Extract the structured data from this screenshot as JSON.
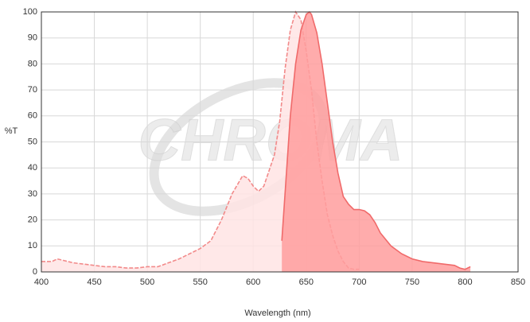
{
  "chart_data": {
    "type": "area",
    "watermark": "CHROMA",
    "xlabel": "Wavelength (nm)",
    "ylabel": "%T",
    "xlim": [
      400,
      850
    ],
    "xticks": [
      400,
      450,
      500,
      550,
      600,
      650,
      700,
      750,
      800,
      850
    ],
    "ylim": [
      0,
      100
    ],
    "yticks": [
      0,
      10,
      20,
      30,
      40,
      50,
      60,
      70,
      80,
      90,
      100
    ],
    "grid": true,
    "series": [
      {
        "color": "#f28a8a",
        "fill": "#ffe4e4",
        "dashed": true,
        "x": [
          400,
          410,
          415,
          420,
          430,
          440,
          450,
          460,
          470,
          480,
          490,
          500,
          510,
          520,
          530,
          540,
          550,
          560,
          570,
          580,
          590,
          595,
          600,
          605,
          610,
          620,
          625,
          630,
          635,
          640,
          645,
          650,
          655,
          660,
          665,
          670,
          675,
          680,
          685,
          690,
          695,
          700
        ],
        "values": [
          4,
          4,
          5,
          4.5,
          3.5,
          3,
          2.5,
          2,
          2,
          1.5,
          1.5,
          2,
          2,
          3.5,
          5,
          7,
          9,
          12,
          20,
          30,
          37,
          36,
          33,
          31,
          33,
          45,
          58,
          78,
          93,
          100,
          97,
          85,
          70,
          50,
          35,
          22,
          14,
          8,
          4,
          1.5,
          1,
          1
        ]
      },
      {
        "color": "#f06a6a",
        "fill": "#ff9d9d",
        "dashed": false,
        "x": [
          627,
          630,
          635,
          640,
          645,
          650,
          653,
          655,
          660,
          665,
          670,
          675,
          680,
          685,
          690,
          695,
          700,
          705,
          710,
          715,
          720,
          730,
          740,
          750,
          760,
          770,
          780,
          790,
          795,
          800,
          805
        ],
        "values": [
          12,
          30,
          60,
          80,
          93,
          99,
          100,
          99,
          92,
          80,
          65,
          50,
          38,
          29,
          26,
          24,
          24,
          23.5,
          22,
          19,
          15,
          10,
          7,
          5,
          4,
          3.5,
          3,
          2.5,
          1.5,
          1,
          2
        ]
      }
    ]
  }
}
